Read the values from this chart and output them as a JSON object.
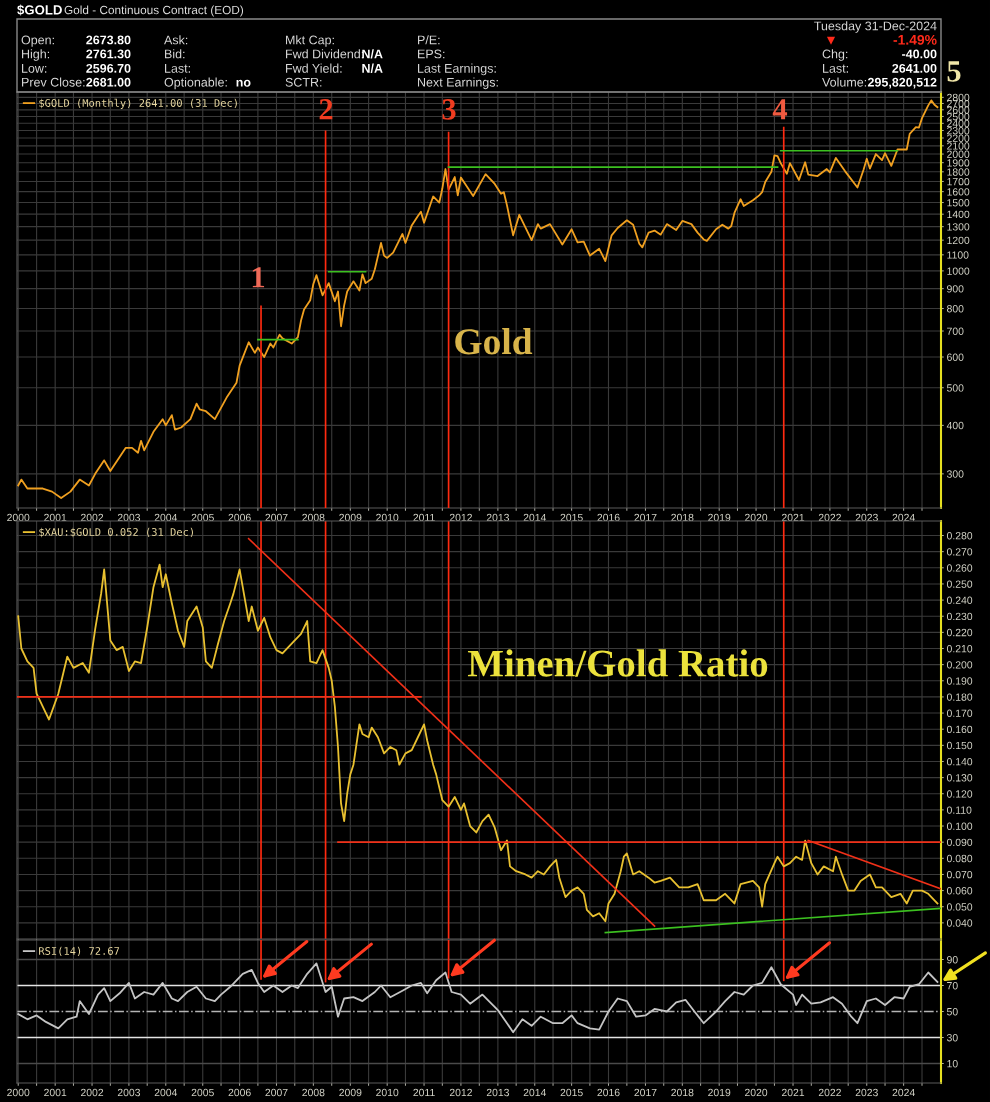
{
  "chart_data": [
    {
      "type": "line",
      "title": "$GOLD",
      "subtitle": "Gold - Continuous Contract (EOD)",
      "log": true,
      "grid": true,
      "legend": "top left",
      "xlim": [
        "1999-12-20",
        "2025-01-05"
      ],
      "ylim": [
        245,
        2890
      ],
      "xticks": [
        "2000",
        {
          "value": "2000-07",
          "label": null
        },
        "2001",
        {
          "value": "2001-07",
          "label": null
        },
        "2002",
        {
          "value": "2002-07",
          "label": null
        },
        "2003",
        {
          "value": "2003-07",
          "label": null
        },
        "2004",
        {
          "value": "2004-07",
          "label": null
        },
        "2005",
        {
          "value": "2005-07",
          "label": null
        },
        "2006",
        {
          "value": "2006-07",
          "label": null
        },
        "2007",
        {
          "value": "2007-07",
          "label": null
        },
        "2008",
        {
          "value": "2008-07",
          "label": null
        },
        "2009",
        {
          "value": "2009-07",
          "label": null
        },
        "2010",
        {
          "value": "2010-07",
          "label": null
        },
        "2011",
        {
          "value": "2011-07",
          "label": null
        },
        "2012",
        {
          "value": "2012-07",
          "label": null
        },
        "2013",
        {
          "value": "2013-07",
          "label": null
        },
        "2014",
        {
          "value": "2014-07",
          "label": null
        },
        "2015",
        {
          "value": "2015-07",
          "label": null
        },
        "2016",
        {
          "value": "2016-07",
          "label": null
        },
        "2017",
        {
          "value": "2017-07",
          "label": null
        },
        "2018",
        {
          "value": "2018-07",
          "label": null
        },
        "2019",
        {
          "value": "2019-07",
          "label": null
        },
        "2020",
        {
          "value": "2020-07",
          "label": null
        },
        "2021",
        {
          "value": "2021-07",
          "label": null
        },
        "2022",
        {
          "value": "2022-07",
          "label": null
        },
        "2023",
        {
          "value": "2023-07",
          "label": null
        },
        "2024",
        {
          "value": "2024-07",
          "label": null
        }
      ],
      "yticks": [
        300,
        400,
        500,
        600,
        700,
        800,
        900,
        1000,
        1100,
        1200,
        1300,
        1400,
        1500,
        1600,
        1700,
        1800,
        1900,
        2000,
        2100,
        2200,
        2300,
        2400,
        2500,
        2600,
        2700,
        2800
      ],
      "series": [
        {
          "name": "$GOLD (Monthly) 2641.00 (31 Dec)",
          "color": "#f0a020",
          "x": [
            "2000-01",
            "2000-02",
            "2000-04",
            "2000-09",
            "2000-12",
            "2001-03",
            "2001-06",
            "2001-09",
            "2001-12",
            "2002-02",
            "2002-05",
            "2002-07",
            "2002-12",
            "2003-02",
            "2003-04",
            "2003-05",
            "2003-06",
            "2003-09",
            "2003-12",
            "2004-01",
            "2004-03",
            "2004-04",
            "2004-06",
            "2004-09",
            "2004-11",
            "2004-12",
            "2005-02",
            "2005-05",
            "2005-09",
            "2005-12",
            "2006-01",
            "2006-04",
            "2006-06",
            "2006-07",
            "2006-09",
            "2006-11",
            "2006-12",
            "2007-02",
            "2007-03",
            "2007-06",
            "2007-08",
            "2007-09",
            "2007-10",
            "2007-12",
            "2008-01",
            "2008-02",
            "2008-04",
            "2008-06",
            "2008-08",
            "2008-09",
            "2008-10",
            "2008-11",
            "2008-12",
            "2009-02",
            "2009-04",
            "2009-05",
            "2009-06",
            "2009-08",
            "2009-09",
            "2009-11",
            "2009-12",
            "2010-01",
            "2010-03",
            "2010-06",
            "2010-07",
            "2010-09",
            "2010-11",
            "2010-12",
            "2011-01",
            "2011-04",
            "2011-06",
            "2011-07",
            "2011-08",
            "2011-09",
            "2011-11",
            "2011-12",
            "2012-01",
            "2012-05",
            "2012-09",
            "2012-12",
            "2013-02",
            "2013-03",
            "2013-04",
            "2013-06",
            "2013-08",
            "2013-12",
            "2014-02",
            "2014-03",
            "2014-06",
            "2014-10",
            "2015-01",
            "2015-03",
            "2015-05",
            "2015-07",
            "2015-10",
            "2015-12",
            "2016-02",
            "2016-04",
            "2016-07",
            "2016-09",
            "2016-11",
            "2016-12",
            "2017-02",
            "2017-04",
            "2017-06",
            "2017-08",
            "2017-11",
            "2018-01",
            "2018-04",
            "2018-06",
            "2018-08",
            "2018-09",
            "2018-12",
            "2019-02",
            "2019-04",
            "2019-05",
            "2019-06",
            "2019-08",
            "2019-09",
            "2019-12",
            "2020-02",
            "2020-03",
            "2020-04",
            "2020-06",
            "2020-07",
            "2020-08",
            "2020-09",
            "2020-11",
            "2020-12",
            "2021-03",
            "2021-05",
            "2021-06",
            "2021-09",
            "2021-12",
            "2022-01",
            "2022-03",
            "2022-06",
            "2022-10",
            "2022-12",
            "2023-01",
            "2023-02",
            "2023-04",
            "2023-06",
            "2023-07",
            "2023-09",
            "2023-11",
            "2024-01",
            "2024-02",
            "2024-03",
            "2024-05",
            "2024-06",
            "2024-07",
            "2024-09",
            "2024-10",
            "2024-11",
            "2024-12"
          ],
          "values": [
            280,
            290,
            275,
            275,
            270,
            260,
            270,
            290,
            280,
            300,
            325,
            305,
            350,
            350,
            340,
            365,
            345,
            385,
            415,
            400,
            425,
            390,
            395,
            415,
            455,
            440,
            435,
            415,
            475,
            515,
            570,
            655,
            615,
            635,
            600,
            650,
            635,
            685,
            670,
            650,
            675,
            745,
            795,
            840,
            925,
            975,
            865,
            930,
            835,
            885,
            720,
            815,
            885,
            940,
            890,
            980,
            930,
            955,
            1010,
            1180,
            1095,
            1080,
            1115,
            1245,
            1180,
            1310,
            1385,
            1420,
            1330,
            1555,
            1500,
            1630,
            1830,
            1620,
            1745,
            1565,
            1740,
            1560,
            1775,
            1675,
            1580,
            1595,
            1475,
            1235,
            1395,
            1200,
            1320,
            1285,
            1320,
            1170,
            1280,
            1185,
            1190,
            1095,
            1140,
            1060,
            1235,
            1290,
            1350,
            1315,
            1175,
            1150,
            1255,
            1270,
            1240,
            1320,
            1275,
            1345,
            1320,
            1255,
            1205,
            1195,
            1280,
            1315,
            1285,
            1305,
            1410,
            1530,
            1470,
            1520,
            1565,
            1595,
            1695,
            1800,
            1985,
            1975,
            1895,
            1780,
            1895,
            1715,
            1905,
            1770,
            1755,
            1830,
            1795,
            1955,
            1805,
            1640,
            1825,
            1945,
            1835,
            2000,
            1930,
            2010,
            1865,
            2055,
            2055,
            2055,
            2255,
            2345,
            2340,
            2475,
            2670,
            2750,
            2680,
            2641
          ]
        },
        {
          "color": "#ff2a10",
          "x": [
            "2006-08",
            "2006-08"
          ],
          "values": [
            810,
            245
          ]
        },
        {
          "color": "#ff2a10",
          "x": [
            "2008-05",
            "2008-05"
          ],
          "values": [
            2290,
            245
          ]
        },
        {
          "color": "#ff2a10",
          "x": [
            "2011-09",
            "2011-09"
          ],
          "values": [
            2270,
            245
          ]
        },
        {
          "color": "#ff2a10",
          "x": [
            "2020-10",
            "2020-10"
          ],
          "values": [
            2340,
            245
          ]
        },
        {
          "color": "#3cc020",
          "x": [
            "2006-07",
            "2007-08"
          ],
          "values": [
            665,
            665
          ]
        },
        {
          "color": "#3cc020",
          "x": [
            "2008-06",
            "2009-06"
          ],
          "values": [
            995,
            995
          ]
        },
        {
          "color": "#3cc020",
          "x": [
            "2011-09",
            "2020-08"
          ],
          "values": [
            1850,
            1850
          ]
        },
        {
          "color": "#3cc020",
          "x": [
            "2020-09",
            "2023-11"
          ],
          "values": [
            2040,
            2040
          ]
        }
      ],
      "annotations": [
        "Open:",
        "2673.80",
        "High:",
        "2761.30",
        "Low:",
        "2596.70",
        "Prev Close:",
        "2681.00",
        "Ask:",
        "Bid:",
        "Last:",
        "Optionable:",
        "no",
        "Mkt Cap:",
        "Fwd Dividend:",
        "N/A",
        "Fwd Yield:",
        "N/A",
        "SCTR:",
        "P/E:",
        "EPS:",
        "Last Earnings:",
        "Next Earnings:",
        "Tuesday 31-Dec-2024",
        "▼",
        "-1.49%",
        "Chg:",
        "-40.00",
        "Last:",
        "2641.00",
        "Volume:",
        "295,820,512",
        "1",
        "2",
        "3",
        "4",
        "5",
        "Gold"
      ]
    },
    {
      "type": "line",
      "grid": true,
      "legend": "top left",
      "tick_labels": "y",
      "xlim": [
        "1999-12-20",
        "2025-01-05"
      ],
      "ylim": [
        0.03,
        0.289
      ],
      "xticks": [
        "2000",
        {
          "value": "2000-07",
          "label": null
        },
        "2001",
        {
          "value": "2001-07",
          "label": null
        },
        "2002",
        {
          "value": "2002-07",
          "label": null
        },
        "2003",
        {
          "value": "2003-07",
          "label": null
        },
        "2004",
        {
          "value": "2004-07",
          "label": null
        },
        "2005",
        {
          "value": "2005-07",
          "label": null
        },
        "2006",
        {
          "value": "2006-07",
          "label": null
        },
        "2007",
        {
          "value": "2007-07",
          "label": null
        },
        "2008",
        {
          "value": "2008-07",
          "label": null
        },
        "2009",
        {
          "value": "2009-07",
          "label": null
        },
        "2010",
        {
          "value": "2010-07",
          "label": null
        },
        "2011",
        {
          "value": "2011-07",
          "label": null
        },
        "2012",
        {
          "value": "2012-07",
          "label": null
        },
        "2013",
        {
          "value": "2013-07",
          "label": null
        },
        "2014",
        {
          "value": "2014-07",
          "label": null
        },
        "2015",
        {
          "value": "2015-07",
          "label": null
        },
        "2016",
        {
          "value": "2016-07",
          "label": null
        },
        "2017",
        {
          "value": "2017-07",
          "label": null
        },
        "2018",
        {
          "value": "2018-07",
          "label": null
        },
        "2019",
        {
          "value": "2019-07",
          "label": null
        },
        "2020",
        {
          "value": "2020-07",
          "label": null
        },
        "2021",
        {
          "value": "2021-07",
          "label": null
        },
        "2022",
        {
          "value": "2022-07",
          "label": null
        },
        "2023",
        {
          "value": "2023-07",
          "label": null
        },
        "2024",
        {
          "value": "2024-07",
          "label": null
        }
      ],
      "yticks": [
        {
          "value": 0.04,
          "label": "0.040"
        },
        {
          "value": 0.05,
          "label": "0.050"
        },
        {
          "value": 0.06,
          "label": "0.060"
        },
        {
          "value": 0.07,
          "label": "0.070"
        },
        {
          "value": 0.08,
          "label": "0.080"
        },
        {
          "value": 0.09,
          "label": "0.090"
        },
        {
          "value": 0.1,
          "label": "0.100"
        },
        {
          "value": 0.11,
          "label": "0.110"
        },
        {
          "value": 0.12,
          "label": "0.120"
        },
        {
          "value": 0.13,
          "label": "0.130"
        },
        {
          "value": 0.14,
          "label": "0.140"
        },
        {
          "value": 0.15,
          "label": "0.150"
        },
        {
          "value": 0.16,
          "label": "0.160"
        },
        {
          "value": 0.17,
          "label": "0.170"
        },
        {
          "value": 0.18,
          "label": "0.180"
        },
        {
          "value": 0.19,
          "label": "0.190"
        },
        {
          "value": 0.2,
          "label": "0.200"
        },
        {
          "value": 0.21,
          "label": "0.210"
        },
        {
          "value": 0.22,
          "label": "0.220"
        },
        {
          "value": 0.23,
          "label": "0.230"
        },
        {
          "value": 0.24,
          "label": "0.240"
        },
        {
          "value": 0.25,
          "label": "0.250"
        },
        {
          "value": 0.26,
          "label": "0.260"
        },
        {
          "value": 0.27,
          "label": "0.270"
        },
        {
          "value": 0.28,
          "label": "0.280"
        }
      ],
      "series": [
        {
          "name": "$XAU:$GOLD 0.052 (31 Dec)",
          "color": "#e8c030",
          "x": [
            "2000-01",
            "2000-02",
            "2000-04",
            "2000-06",
            "2000-07",
            "2000-10",
            "2000-11",
            "2001-02",
            "2001-05",
            "2001-07",
            "2001-10",
            "2001-12",
            "2002-02",
            "2002-04",
            "2002-05",
            "2002-07",
            "2002-09",
            "2002-11",
            "2003-01",
            "2003-03",
            "2003-05",
            "2003-07",
            "2003-09",
            "2003-11",
            "2003-12",
            "2004-01",
            "2004-03",
            "2004-05",
            "2004-07",
            "2004-08",
            "2004-11",
            "2005-01",
            "2005-02",
            "2005-04",
            "2005-06",
            "2005-08",
            "2005-10",
            "2005-11",
            "2006-01",
            "2006-02",
            "2006-04",
            "2006-05",
            "2006-07",
            "2006-09",
            "2006-11",
            "2007-01",
            "2007-03",
            "2007-05",
            "2007-07",
            "2007-09",
            "2007-11",
            "2007-12",
            "2008-02",
            "2008-04",
            "2008-06",
            "2008-07",
            "2008-08",
            "2008-09",
            "2008-10",
            "2008-11",
            "2008-12",
            "2009-01",
            "2009-02",
            "2009-04",
            "2009-05",
            "2009-07",
            "2009-08",
            "2009-10",
            "2009-12",
            "2010-02",
            "2010-04",
            "2010-05",
            "2010-07",
            "2010-09",
            "2010-11",
            "2011-01",
            "2011-02",
            "2011-04",
            "2011-05",
            "2011-07",
            "2011-09",
            "2011-11",
            "2012-01",
            "2012-02",
            "2012-04",
            "2012-06",
            "2012-08",
            "2012-10",
            "2012-12",
            "2013-02",
            "2013-04",
            "2013-05",
            "2013-07",
            "2013-10",
            "2013-12",
            "2014-02",
            "2014-04",
            "2014-06",
            "2014-08",
            "2014-09",
            "2014-11",
            "2015-01",
            "2015-03",
            "2015-05",
            "2015-06",
            "2015-08",
            "2015-10",
            "2015-12",
            "2016-01",
            "2016-03",
            "2016-05",
            "2016-06",
            "2016-07",
            "2016-09",
            "2016-11",
            "2017-02",
            "2017-04",
            "2017-06",
            "2017-09",
            "2017-12",
            "2018-03",
            "2018-06",
            "2018-08",
            "2018-12",
            "2019-03",
            "2019-06",
            "2019-08",
            "2019-12",
            "2020-02",
            "2020-03",
            "2020-04",
            "2020-07",
            "2020-08",
            "2020-10",
            "2020-12",
            "2021-02",
            "2021-04",
            "2021-05",
            "2021-07",
            "2021-09",
            "2021-11",
            "2022-02",
            "2022-03",
            "2022-05",
            "2022-07",
            "2022-09",
            "2022-11",
            "2023-02",
            "2023-04",
            "2023-06",
            "2023-09",
            "2023-12",
            "2024-02",
            "2024-04",
            "2024-07",
            "2024-09",
            "2024-12"
          ],
          "values": [
            0.23,
            0.21,
            0.202,
            0.198,
            0.182,
            0.17,
            0.166,
            0.182,
            0.205,
            0.198,
            0.201,
            0.195,
            0.222,
            0.244,
            0.259,
            0.215,
            0.209,
            0.211,
            0.196,
            0.202,
            0.201,
            0.223,
            0.248,
            0.262,
            0.248,
            0.256,
            0.238,
            0.221,
            0.211,
            0.227,
            0.236,
            0.223,
            0.202,
            0.198,
            0.213,
            0.227,
            0.238,
            0.244,
            0.259,
            0.248,
            0.227,
            0.236,
            0.221,
            0.229,
            0.217,
            0.209,
            0.207,
            0.211,
            0.215,
            0.219,
            0.227,
            0.202,
            0.201,
            0.209,
            0.198,
            0.19,
            0.174,
            0.149,
            0.114,
            0.103,
            0.12,
            0.132,
            0.138,
            0.163,
            0.157,
            0.155,
            0.161,
            0.155,
            0.145,
            0.149,
            0.147,
            0.138,
            0.145,
            0.147,
            0.155,
            0.163,
            0.153,
            0.138,
            0.132,
            0.116,
            0.112,
            0.118,
            0.11,
            0.114,
            0.1,
            0.096,
            0.103,
            0.107,
            0.099,
            0.085,
            0.091,
            0.075,
            0.072,
            0.07,
            0.068,
            0.072,
            0.07,
            0.075,
            0.079,
            0.068,
            0.056,
            0.06,
            0.062,
            0.058,
            0.048,
            0.044,
            0.046,
            0.041,
            0.052,
            0.058,
            0.072,
            0.081,
            0.083,
            0.07,
            0.072,
            0.068,
            0.065,
            0.066,
            0.068,
            0.062,
            0.062,
            0.064,
            0.054,
            0.054,
            0.058,
            0.052,
            0.064,
            0.066,
            0.062,
            0.05,
            0.064,
            0.077,
            0.081,
            0.075,
            0.077,
            0.081,
            0.079,
            0.091,
            0.077,
            0.07,
            0.075,
            0.072,
            0.081,
            0.07,
            0.06,
            0.06,
            0.066,
            0.07,
            0.062,
            0.062,
            0.056,
            0.058,
            0.052,
            0.06,
            0.06,
            0.058,
            0.052
          ]
        },
        {
          "color": "#f03018",
          "x": [
            "2006-04",
            "2017-04"
          ],
          "values": [
            0.278,
            0.038
          ]
        },
        {
          "color": "#f03018",
          "x": [
            "1999-12-20",
            "2010-12"
          ],
          "values": [
            0.18,
            0.18
          ]
        },
        {
          "color": "#f03018",
          "x": [
            "2008-09",
            "2025-01-05"
          ],
          "values": [
            0.09,
            0.09
          ]
        },
        {
          "color": "#f03018",
          "x": [
            "2021-06",
            "2025-01-05"
          ],
          "values": [
            0.091,
            0.061
          ]
        },
        {
          "color": "#3cc020",
          "x": [
            "2015-12",
            "2025-01-05"
          ],
          "values": [
            0.034,
            0.049
          ]
        }
      ],
      "ref_lines": [
        {
          "axis": "x",
          "value": "2006-08",
          "color": "#ff2a10"
        },
        {
          "axis": "x",
          "value": "2008-05",
          "color": "#ff2a10"
        },
        {
          "axis": "x",
          "value": "2011-09",
          "color": "#ff2a10"
        },
        {
          "axis": "x",
          "value": "2020-10",
          "color": "#ff2a10"
        }
      ],
      "annotations": [
        "Minen/Gold Ratio"
      ]
    },
    {
      "type": "line",
      "grid": "x",
      "legend": "top left",
      "xlim": [
        "1999-12-20",
        "2025-01-05"
      ],
      "ylim": [
        -5,
        105
      ],
      "xticks": [
        "2000",
        {
          "value": "2000-07",
          "label": null
        },
        "2001",
        {
          "value": "2001-07",
          "label": null
        },
        "2002",
        {
          "value": "2002-07",
          "label": null
        },
        "2003",
        {
          "value": "2003-07",
          "label": null
        },
        "2004",
        {
          "value": "2004-07",
          "label": null
        },
        "2005",
        {
          "value": "2005-07",
          "label": null
        },
        "2006",
        {
          "value": "2006-07",
          "label": null
        },
        "2007",
        {
          "value": "2007-07",
          "label": null
        },
        "2008",
        {
          "value": "2008-07",
          "label": null
        },
        "2009",
        {
          "value": "2009-07",
          "label": null
        },
        "2010",
        {
          "value": "2010-07",
          "label": null
        },
        "2011",
        {
          "value": "2011-07",
          "label": null
        },
        "2012",
        {
          "value": "2012-07",
          "label": null
        },
        "2013",
        {
          "value": "2013-07",
          "label": null
        },
        "2014",
        {
          "value": "2014-07",
          "label": null
        },
        "2015",
        {
          "value": "2015-07",
          "label": null
        },
        "2016",
        {
          "value": "2016-07",
          "label": null
        },
        "2017",
        {
          "value": "2017-07",
          "label": null
        },
        "2018",
        {
          "value": "2018-07",
          "label": null
        },
        "2019",
        {
          "value": "2019-07",
          "label": null
        },
        "2020",
        {
          "value": "2020-07",
          "label": null
        },
        "2021",
        {
          "value": "2021-07",
          "label": null
        },
        "2022",
        {
          "value": "2022-07",
          "label": null
        },
        "2023",
        {
          "value": "2023-07",
          "label": null
        },
        "2024",
        {
          "value": "2024-07",
          "label": null
        }
      ],
      "yticks": [
        10,
        30,
        50,
        70,
        90
      ],
      "series": [
        {
          "name": "RSI(14) 72.67",
          "color": "#c4c4c4",
          "x": [
            "2000-01",
            "2000-04",
            "2000-07",
            "2000-10",
            "2001-02",
            "2001-05",
            "2001-08",
            "2001-09",
            "2001-12",
            "2002-03",
            "2002-05",
            "2002-07",
            "2002-10",
            "2003-01",
            "2003-03",
            "2003-06",
            "2003-09",
            "2003-12",
            "2004-03",
            "2004-05",
            "2004-08",
            "2004-11",
            "2005-02",
            "2005-05",
            "2005-07",
            "2005-10",
            "2006-02",
            "2006-05",
            "2006-07",
            "2006-09",
            "2006-12",
            "2007-03",
            "2007-06",
            "2007-08",
            "2007-11",
            "2008-02",
            "2008-05",
            "2008-07",
            "2008-09",
            "2008-11",
            "2009-02",
            "2009-05",
            "2009-09",
            "2009-11",
            "2010-02",
            "2010-06",
            "2010-09",
            "2010-12",
            "2011-02",
            "2011-05",
            "2011-08",
            "2011-10",
            "2012-01",
            "2012-04",
            "2012-08",
            "2013-01",
            "2013-04",
            "2013-06",
            "2013-09",
            "2013-12",
            "2014-03",
            "2014-07",
            "2014-10",
            "2015-01",
            "2015-03",
            "2015-07",
            "2015-10",
            "2016-01",
            "2016-04",
            "2016-07",
            "2016-10",
            "2017-01",
            "2017-04",
            "2017-08",
            "2017-11",
            "2018-02",
            "2018-05",
            "2018-08",
            "2018-12",
            "2019-03",
            "2019-06",
            "2019-09",
            "2019-12",
            "2020-03",
            "2020-06",
            "2020-09",
            "2021-01",
            "2021-02",
            "2021-04",
            "2021-07",
            "2021-10",
            "2022-02",
            "2022-05",
            "2022-08",
            "2022-10",
            "2023-01",
            "2023-04",
            "2023-07",
            "2023-10",
            "2024-01",
            "2024-03",
            "2024-06",
            "2024-09",
            "2024-12"
          ],
          "values": [
            48,
            44,
            47,
            42,
            37,
            44,
            46,
            58,
            48,
            63,
            68,
            58,
            64,
            72,
            60,
            65,
            63,
            72,
            60,
            58,
            65,
            69,
            60,
            58,
            63,
            69,
            79,
            82,
            72,
            65,
            70,
            65,
            70,
            68,
            79,
            87,
            65,
            69,
            46,
            60,
            61,
            58,
            65,
            70,
            61,
            66,
            70,
            72,
            64,
            74,
            80,
            65,
            63,
            56,
            63,
            51,
            41,
            34,
            44,
            39,
            46,
            41,
            41,
            47,
            41,
            37,
            36,
            50,
            60,
            58,
            46,
            47,
            52,
            50,
            57,
            59,
            50,
            41,
            50,
            58,
            65,
            63,
            70,
            72,
            84,
            71,
            63,
            55,
            63,
            56,
            57,
            61,
            56,
            46,
            41,
            58,
            60,
            55,
            61,
            60,
            69,
            71,
            80,
            72.67
          ]
        },
        {
          "color": "#ff2a10",
          "x": [
            "2006-08",
            "2006-08"
          ],
          "values": [
            105,
            75
          ]
        },
        {
          "color": "#ff2a10",
          "x": [
            "2008-05",
            "2008-05"
          ],
          "values": [
            105,
            73
          ]
        },
        {
          "color": "#ff2a10",
          "x": [
            "2011-09",
            "2011-09"
          ],
          "values": [
            105,
            76
          ]
        },
        {
          "color": "#ff2a10",
          "x": [
            "2020-10",
            "2020-10"
          ],
          "values": [
            105,
            74
          ]
        }
      ],
      "ref_lines": [
        {
          "axis": "y",
          "value": 90,
          "color": "#4a4a4a"
        },
        {
          "axis": "y",
          "value": 70,
          "color": "#e4e4e4"
        },
        {
          "axis": "y",
          "value": 50,
          "color": "#b4b4b4",
          "line_style": "dashed"
        },
        {
          "axis": "y",
          "value": 30,
          "color": "#e4e4e4"
        },
        {
          "axis": "y",
          "value": 10,
          "color": "#4a4a4a"
        }
      ]
    }
  ]
}
